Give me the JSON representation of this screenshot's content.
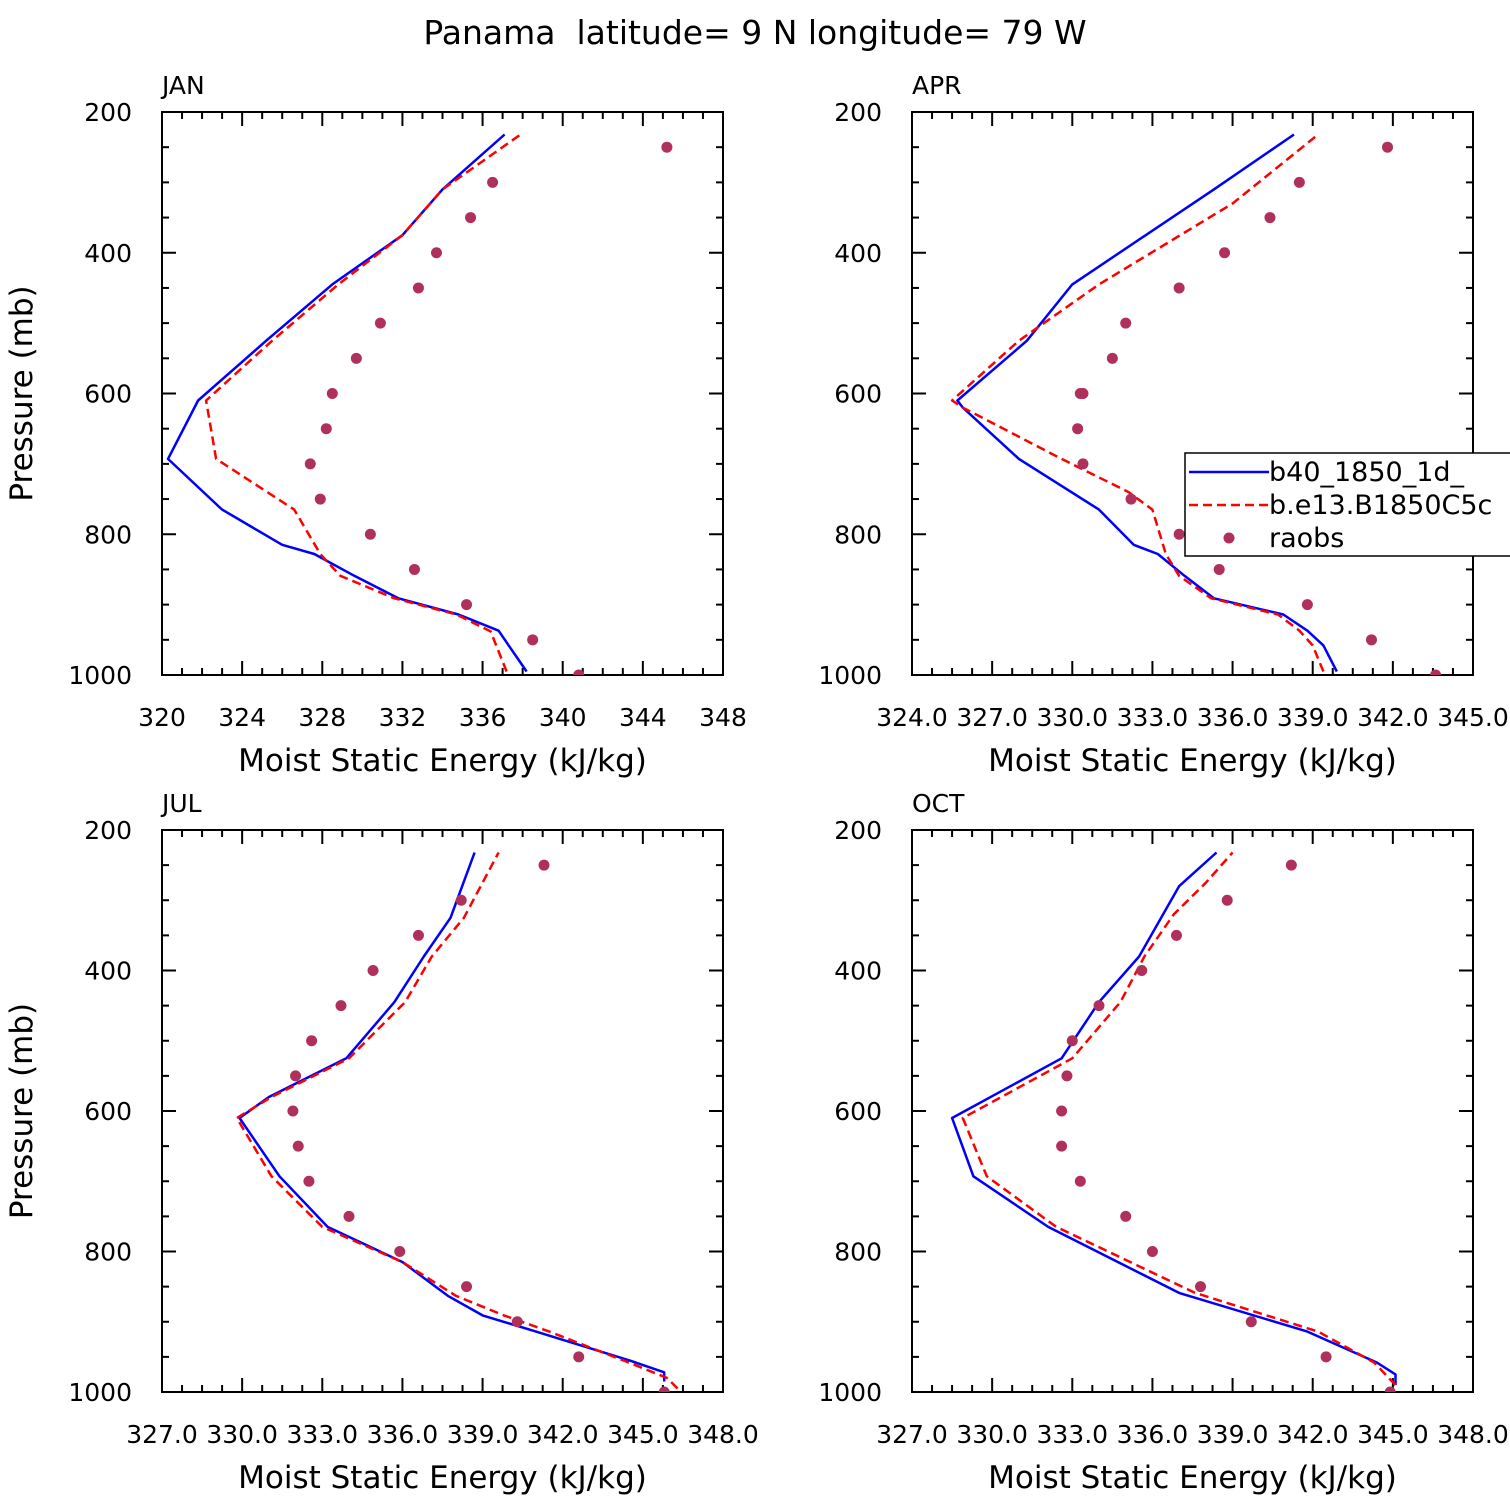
{
  "title": "Panama  latitude= 9 N longitude= 79 W",
  "colors": {
    "model1": "#0000ff",
    "model2": "#ff0000",
    "obs": "#b0305c",
    "axis": "#000000"
  },
  "legend": {
    "entries": [
      {
        "label": "b40_1850_1d_",
        "style": "solid",
        "color": "#0000ff"
      },
      {
        "label": "b.e13.B1850C5c",
        "style": "dashed",
        "color": "#ff0000"
      },
      {
        "label": "raobs",
        "style": "marker",
        "color": "#b0305c"
      }
    ]
  },
  "chart_data": [
    {
      "type": "line",
      "panel_label": "JAN",
      "xlabel": "Moist Static Energy (kJ/kg)",
      "ylabel": "Pressure (mb)",
      "xlim": [
        320,
        348
      ],
      "ylim": [
        1000,
        200
      ],
      "x_ticks": [
        320,
        324,
        328,
        332,
        336,
        340,
        344,
        348
      ],
      "x_tick_labels": [
        "320",
        "324",
        "328",
        "332",
        "336",
        "340",
        "344",
        "348"
      ],
      "y_ticks": [
        200,
        400,
        600,
        800,
        1000
      ],
      "y_tick_labels": [
        "200",
        "400",
        "600",
        "800",
        "1000"
      ],
      "series": [
        {
          "name": "b40_1850_1d_",
          "style": "solid",
          "x": [
            338.2,
            336.8,
            334.8,
            331.8,
            329.6,
            327.6,
            326.0,
            323.0,
            320.3,
            321.8,
            325.2,
            328.5,
            332.0,
            334.0,
            337.1
          ],
          "y": [
            995,
            937,
            914,
            891,
            859,
            828,
            815,
            765,
            693,
            610,
            525,
            445,
            375,
            310,
            232
          ]
        },
        {
          "name": "b.e13.B1850C5c",
          "style": "dashed",
          "x": [
            337.2,
            336.4,
            334.7,
            331.6,
            328.9,
            327.9,
            326.6,
            322.7,
            322.2,
            325.5,
            328.8,
            332.0,
            334.0,
            337.9
          ],
          "y": [
            995,
            938,
            914,
            891,
            859,
            828,
            765,
            693,
            610,
            525,
            445,
            375,
            310,
            232
          ]
        },
        {
          "name": "raobs",
          "style": "markers",
          "x": [
            340.8,
            338.5,
            335.2,
            332.6,
            330.4,
            327.9,
            327.4,
            328.2,
            328.5,
            329.7,
            330.9,
            332.8,
            333.7,
            335.4,
            336.5,
            345.2
          ],
          "y": [
            1000,
            950,
            900,
            850,
            800,
            750,
            700,
            650,
            600,
            550,
            500,
            450,
            400,
            350,
            300,
            250
          ]
        }
      ]
    },
    {
      "type": "line",
      "panel_label": "APR",
      "xlabel": "Moist Static Energy (kJ/kg)",
      "ylabel": "",
      "xlim": [
        324,
        345
      ],
      "ylim": [
        1000,
        200
      ],
      "x_ticks": [
        324,
        327,
        330,
        333,
        336,
        339,
        342,
        345
      ],
      "x_tick_labels": [
        "324.0",
        "327.0",
        "330.0",
        "333.0",
        "336.0",
        "339.0",
        "342.0",
        "345.0"
      ],
      "y_ticks": [
        200,
        400,
        600,
        800,
        1000
      ],
      "y_tick_labels": [
        "200",
        "400",
        "600",
        "800",
        "1000"
      ],
      "series": [
        {
          "name": "b40_1850_1d_",
          "style": "solid",
          "x": [
            339.9,
            339.4,
            338.8,
            337.9,
            335.3,
            334.2,
            333.2,
            332.3,
            331.0,
            328.0,
            325.9,
            325.7,
            328.3,
            330.0,
            335.3,
            338.3
          ],
          "y": [
            995,
            958,
            937,
            914,
            891,
            859,
            828,
            815,
            765,
            693,
            620,
            610,
            525,
            445,
            310,
            232
          ]
        },
        {
          "name": "b.e13.B1850C5c",
          "style": "dashed",
          "x": [
            339.4,
            339.0,
            338.5,
            337.7,
            335.2,
            334.0,
            333.5,
            333.0,
            332.1,
            329.6,
            325.9,
            325.5,
            328.0,
            331.0,
            336.0,
            339.2
          ],
          "y": [
            995,
            958,
            937,
            914,
            891,
            859,
            828,
            765,
            740,
            693,
            620,
            610,
            525,
            445,
            330,
            232
          ]
        },
        {
          "name": "raobs",
          "style": "markers",
          "x": [
            343.6,
            341.2,
            338.8,
            335.5,
            334.0,
            332.2,
            330.4,
            330.2,
            330.3,
            330.4,
            331.5,
            332.0,
            334.0,
            335.7,
            337.4,
            338.5,
            341.8
          ],
          "y": [
            1000,
            950,
            900,
            850,
            800,
            750,
            700,
            650,
            600,
            600,
            550,
            500,
            450,
            400,
            350,
            300,
            250
          ]
        }
      ]
    },
    {
      "type": "line",
      "panel_label": "JUL",
      "xlabel": "Moist Static Energy (kJ/kg)",
      "ylabel": "Pressure (mb)",
      "xlim": [
        327,
        348
      ],
      "ylim": [
        1000,
        200
      ],
      "x_ticks": [
        327,
        330,
        333,
        336,
        339,
        342,
        345,
        348
      ],
      "x_tick_labels": [
        "327.0",
        "330.0",
        "333.0",
        "336.0",
        "339.0",
        "342.0",
        "345.0",
        "348.0"
      ],
      "y_ticks": [
        200,
        400,
        600,
        800,
        1000
      ],
      "y_tick_labels": [
        "200",
        "400",
        "600",
        "800",
        "1000"
      ],
      "series": [
        {
          "name": "b40_1850_1d_",
          "style": "solid",
          "x": [
            345.8,
            345.8,
            344.5,
            341.0,
            339.0,
            337.7,
            336.0,
            333.2,
            331.4,
            329.9,
            331.0,
            333.9,
            335.7,
            336.8,
            337.8,
            338.7
          ],
          "y": [
            985,
            972,
            955,
            914,
            891,
            863,
            815,
            765,
            693,
            610,
            580,
            525,
            445,
            380,
            325,
            232
          ]
        },
        {
          "name": "b.e13.B1850C5c",
          "style": "dashed",
          "x": [
            346.3,
            345.9,
            344.6,
            341.5,
            339.8,
            338.0,
            336.0,
            333.0,
            331.1,
            329.8,
            331.1,
            334.0,
            336.1,
            337.1,
            338.3,
            339.6
          ],
          "y": [
            995,
            980,
            960,
            914,
            891,
            863,
            815,
            765,
            693,
            610,
            580,
            525,
            445,
            380,
            325,
            232
          ]
        },
        {
          "name": "raobs",
          "style": "markers",
          "x": [
            345.8,
            342.6,
            340.3,
            338.4,
            335.9,
            334.0,
            332.5,
            332.1,
            331.9,
            332.0,
            332.6,
            333.7,
            334.9,
            336.6,
            338.2,
            341.3
          ],
          "y": [
            1000,
            950,
            900,
            850,
            800,
            750,
            700,
            650,
            600,
            550,
            500,
            450,
            400,
            350,
            300,
            250
          ]
        }
      ]
    },
    {
      "type": "line",
      "panel_label": "OCT",
      "xlabel": "Moist Static Energy (kJ/kg)",
      "ylabel": "",
      "xlim": [
        327,
        348
      ],
      "ylim": [
        1000,
        200
      ],
      "x_ticks": [
        327,
        330,
        333,
        336,
        339,
        342,
        345,
        348
      ],
      "x_tick_labels": [
        "327.0",
        "330.0",
        "333.0",
        "336.0",
        "339.0",
        "342.0",
        "345.0",
        "348.0"
      ],
      "y_ticks": [
        200,
        400,
        600,
        800,
        1000
      ],
      "y_tick_labels": [
        "200",
        "400",
        "600",
        "800",
        "1000"
      ],
      "series": [
        {
          "name": "b40_1850_1d_",
          "style": "solid",
          "x": [
            345.1,
            345.1,
            344.4,
            341.8,
            337.0,
            332.1,
            329.3,
            328.5,
            332.6,
            334.0,
            335.5,
            337.0,
            338.4
          ],
          "y": [
            990,
            975,
            958,
            914,
            859,
            765,
            693,
            610,
            525,
            445,
            380,
            280,
            232
          ]
        },
        {
          "name": "b.e13.B1850C5c",
          "style": "dashed",
          "x": [
            345.1,
            344.3,
            342.2,
            337.6,
            332.4,
            329.8,
            328.9,
            333.0,
            334.8,
            335.7,
            336.8,
            338.0,
            339.0
          ],
          "y": [
            990,
            958,
            914,
            859,
            765,
            693,
            610,
            525,
            445,
            380,
            320,
            275,
            232
          ]
        },
        {
          "name": "raobs",
          "style": "markers",
          "x": [
            344.9,
            342.5,
            339.7,
            337.8,
            336.0,
            335.0,
            333.3,
            332.6,
            332.6,
            332.8,
            333.0,
            334.0,
            335.6,
            336.9,
            338.8,
            341.2
          ],
          "y": [
            1000,
            950,
            900,
            850,
            800,
            750,
            700,
            650,
            600,
            550,
            500,
            450,
            400,
            350,
            300,
            250
          ]
        }
      ]
    }
  ]
}
